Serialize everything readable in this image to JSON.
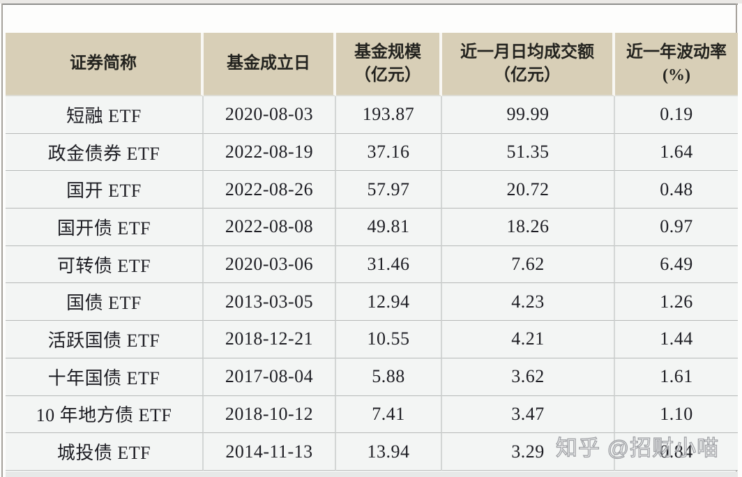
{
  "table": {
    "headers": [
      "证券简称",
      "基金成立日",
      "基金规模\n（亿元）",
      "近一月日均成交额\n（亿元）",
      "近一年波动率\n(%)"
    ],
    "rows": [
      {
        "name": "短融 ETF",
        "inception_date": "2020-08-03",
        "aum": "193.87",
        "avg_daily_turnover": "99.99",
        "volatility": "0.19"
      },
      {
        "name": "政金债券 ETF",
        "inception_date": "2022-08-19",
        "aum": "37.16",
        "avg_daily_turnover": "51.35",
        "volatility": "1.64"
      },
      {
        "name": "国开 ETF",
        "inception_date": "2022-08-26",
        "aum": "57.97",
        "avg_daily_turnover": "20.72",
        "volatility": "0.48"
      },
      {
        "name": "国开债 ETF",
        "inception_date": "2022-08-08",
        "aum": "49.81",
        "avg_daily_turnover": "18.26",
        "volatility": "0.97"
      },
      {
        "name": "可转债 ETF",
        "inception_date": "2020-03-06",
        "aum": "31.46",
        "avg_daily_turnover": "7.62",
        "volatility": "6.49"
      },
      {
        "name": "国债 ETF",
        "inception_date": "2013-03-05",
        "aum": "12.94",
        "avg_daily_turnover": "4.23",
        "volatility": "1.26"
      },
      {
        "name": "活跃国债 ETF",
        "inception_date": "2018-12-21",
        "aum": "10.55",
        "avg_daily_turnover": "4.21",
        "volatility": "1.44"
      },
      {
        "name": "十年国债 ETF",
        "inception_date": "2017-08-04",
        "aum": "5.88",
        "avg_daily_turnover": "3.62",
        "volatility": "1.61"
      },
      {
        "name": "10 年地方债 ETF",
        "inception_date": "2018-10-12",
        "aum": "7.41",
        "avg_daily_turnover": "3.47",
        "volatility": "1.10"
      },
      {
        "name": "城投债 ETF",
        "inception_date": "2014-11-13",
        "aum": "13.94",
        "avg_daily_turnover": "3.29",
        "volatility": "0.84"
      }
    ]
  },
  "watermark": {
    "text": "知乎 @招财小喵"
  },
  "colors": {
    "header_bg": "#d8cfb7",
    "header_gap": "#f8f7f3",
    "row_bg": "#f3f5f4",
    "grid_line": "#b6b9b8",
    "col_divider": "#d3d6d5",
    "text": "#1d1d23"
  },
  "chart_data": {
    "type": "table",
    "title": "",
    "columns": [
      "证券简称",
      "基金成立日",
      "基金规模（亿元）",
      "近一月日均成交额（亿元）",
      "近一年波动率(%)"
    ],
    "rows": [
      [
        "短融 ETF",
        "2020-08-03",
        193.87,
        99.99,
        0.19
      ],
      [
        "政金债券 ETF",
        "2022-08-19",
        37.16,
        51.35,
        1.64
      ],
      [
        "国开 ETF",
        "2022-08-26",
        57.97,
        20.72,
        0.48
      ],
      [
        "国开债 ETF",
        "2022-08-08",
        49.81,
        18.26,
        0.97
      ],
      [
        "可转债 ETF",
        "2020-03-06",
        31.46,
        7.62,
        6.49
      ],
      [
        "国债 ETF",
        "2013-03-05",
        12.94,
        4.23,
        1.26
      ],
      [
        "活跃国债 ETF",
        "2018-12-21",
        10.55,
        4.21,
        1.44
      ],
      [
        "十年国债 ETF",
        "2017-08-04",
        5.88,
        3.62,
        1.61
      ],
      [
        "10 年地方债 ETF",
        "2018-10-12",
        7.41,
        3.47,
        1.1
      ],
      [
        "城投债 ETF",
        "2014-11-13",
        13.94,
        3.29,
        0.84
      ]
    ]
  }
}
